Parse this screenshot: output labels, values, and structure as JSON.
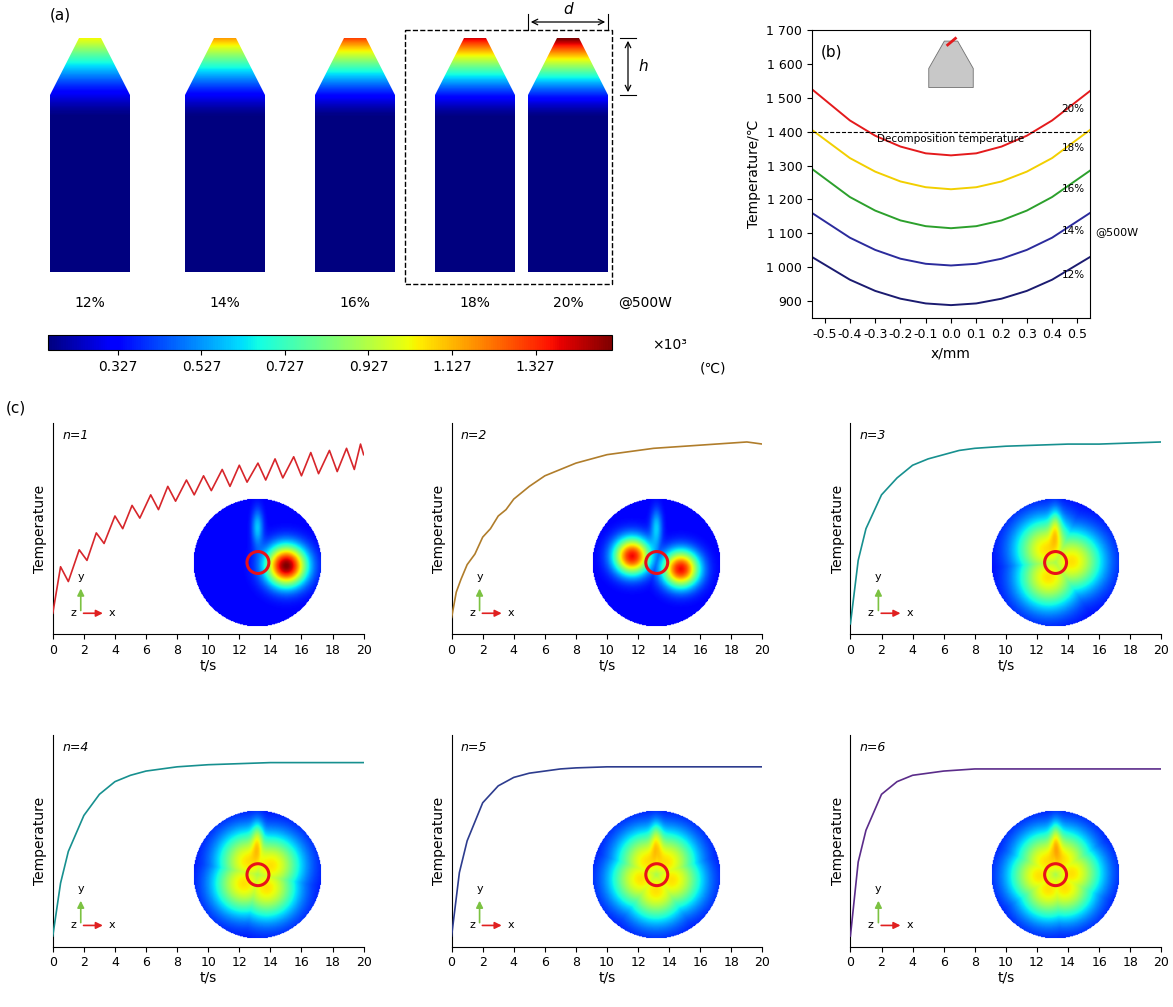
{
  "panel_labels": [
    "(a)",
    "(b)",
    "(c)"
  ],
  "panel_a": {
    "shapes": [
      "12%",
      "14%",
      "16%",
      "18%",
      "20%"
    ],
    "power_label": "@500W",
    "highlighted": [
      "18%",
      "20%"
    ],
    "dimensions": [
      "d",
      "h"
    ],
    "colorbar": {
      "range": [
        160,
        1510
      ],
      "ticks": [
        {
          "value": 327,
          "label": "0.327"
        },
        {
          "value": 527,
          "label": "0.527"
        },
        {
          "value": 727,
          "label": "0.727"
        },
        {
          "value": 927,
          "label": "0.927"
        },
        {
          "value": 1127,
          "label": "1.127"
        },
        {
          "value": 1327,
          "label": "1.327"
        }
      ],
      "multiplier": "×10³",
      "unit": "(℃)"
    }
  },
  "panel_c": {
    "glyph_labels": [
      "x",
      "y",
      "z"
    ]
  },
  "chart_data": [
    {
      "type": "line",
      "xlabel": "x/mm",
      "ylabel": "Temperature/℃",
      "power_label": "@500W",
      "reference_lines": [
        {
          "y": 1400,
          "text": "Decomposition temperature"
        }
      ],
      "x": [
        -0.55,
        -0.4,
        -0.3,
        -0.2,
        -0.1,
        0.0,
        0.1,
        0.2,
        0.3,
        0.4,
        0.55
      ],
      "series": [
        {
          "name": "20%",
          "color": "#e41a1c",
          "values": [
            1525,
            1433,
            1388,
            1356,
            1336,
            1330,
            1336,
            1356,
            1388,
            1433,
            1520
          ]
        },
        {
          "name": "18%",
          "color": "#f2cf00",
          "values": [
            1405,
            1322,
            1282,
            1253,
            1236,
            1230,
            1236,
            1253,
            1282,
            1322,
            1405
          ]
        },
        {
          "name": "16%",
          "color": "#2ca02c",
          "values": [
            1290,
            1207,
            1167,
            1138,
            1121,
            1115,
            1121,
            1138,
            1167,
            1207,
            1285
          ]
        },
        {
          "name": "14%",
          "color": "#2b2b9c",
          "values": [
            1160,
            1087,
            1051,
            1025,
            1010,
            1005,
            1010,
            1025,
            1051,
            1087,
            1160
          ]
        },
        {
          "name": "12%",
          "color": "#1b1b70",
          "values": [
            1030,
            963,
            930,
            907,
            893,
            888,
            893,
            907,
            930,
            963,
            1030
          ]
        }
      ],
      "xlim": [
        -0.55,
        0.55
      ],
      "xticks": [
        -0.5,
        -0.4,
        -0.3,
        -0.2,
        -0.1,
        0.0,
        0.1,
        0.2,
        0.3,
        0.4,
        0.5
      ],
      "ylim": [
        850,
        1700
      ],
      "yticks": [
        900,
        {
          "value": 1000,
          "label": "1 000"
        },
        {
          "value": 1100,
          "label": "1 100"
        },
        {
          "value": 1200,
          "label": "1 200"
        },
        {
          "value": 1300,
          "label": "1 300"
        },
        {
          "value": 1400,
          "label": "1 400"
        },
        {
          "value": 1500,
          "label": "1 500"
        },
        {
          "value": 1600,
          "label": "1 600"
        },
        {
          "value": 1700,
          "label": "1 700"
        }
      ]
    },
    {
      "type": "line",
      "title": "n=1",
      "xlabel": "t/s",
      "ylabel": "Temperature",
      "x": [
        0,
        0.5,
        1.0,
        1.7,
        2.2,
        2.8,
        3.3,
        4.0,
        4.5,
        5.1,
        5.6,
        6.3,
        6.8,
        7.4,
        7.9,
        8.6,
        9.1,
        9.7,
        10.2,
        10.9,
        11.4,
        12.0,
        12.5,
        13.2,
        13.7,
        14.3,
        14.8,
        15.5,
        16.0,
        16.6,
        17.1,
        17.8,
        18.3,
        18.9,
        19.4,
        19.8,
        20.0
      ],
      "series": [
        {
          "color": "#d7262b",
          "values": [
            0.1,
            0.32,
            0.25,
            0.4,
            0.35,
            0.48,
            0.43,
            0.56,
            0.5,
            0.61,
            0.55,
            0.66,
            0.59,
            0.7,
            0.63,
            0.73,
            0.66,
            0.75,
            0.68,
            0.78,
            0.7,
            0.8,
            0.72,
            0.81,
            0.73,
            0.83,
            0.74,
            0.84,
            0.75,
            0.86,
            0.76,
            0.87,
            0.77,
            0.88,
            0.78,
            0.9,
            0.85
          ]
        }
      ],
      "xlim": [
        0,
        20
      ],
      "xticks": [
        0,
        2,
        4,
        6,
        8,
        10,
        12,
        14,
        16,
        18,
        20
      ],
      "ylim": [
        0,
        1
      ],
      "tick_labels": "x"
    },
    {
      "type": "line",
      "title": "n=2",
      "xlabel": "t/s",
      "ylabel": "Temperature",
      "x": [
        0,
        0.3,
        0.6,
        1,
        1.5,
        2,
        2.5,
        3,
        3.5,
        4,
        5,
        6,
        7,
        8,
        9,
        10,
        11,
        12,
        13,
        14,
        15,
        16,
        17,
        18,
        19,
        20
      ],
      "series": [
        {
          "color": "#b07d2b",
          "values": [
            0.08,
            0.2,
            0.26,
            0.33,
            0.38,
            0.46,
            0.5,
            0.56,
            0.59,
            0.64,
            0.7,
            0.75,
            0.78,
            0.81,
            0.83,
            0.85,
            0.86,
            0.87,
            0.88,
            0.885,
            0.89,
            0.895,
            0.9,
            0.905,
            0.91,
            0.9
          ]
        }
      ],
      "xlim": [
        0,
        20
      ],
      "xticks": [
        0,
        2,
        4,
        6,
        8,
        10,
        12,
        14,
        16,
        18,
        20
      ],
      "ylim": [
        0,
        1
      ],
      "tick_labels": "x"
    },
    {
      "type": "line",
      "title": "n=3",
      "xlabel": "t/s",
      "ylabel": "Temperature",
      "x": [
        0,
        0.5,
        1,
        2,
        3,
        4,
        5,
        6,
        7,
        8,
        10,
        12,
        14,
        16,
        18,
        20
      ],
      "series": [
        {
          "color": "#17908f",
          "values": [
            0.05,
            0.35,
            0.5,
            0.66,
            0.74,
            0.8,
            0.83,
            0.85,
            0.87,
            0.88,
            0.89,
            0.895,
            0.9,
            0.9,
            0.905,
            0.91
          ]
        }
      ],
      "xlim": [
        0,
        20
      ],
      "xticks": [
        0,
        2,
        4,
        6,
        8,
        10,
        12,
        14,
        16,
        18,
        20
      ],
      "ylim": [
        0,
        1
      ],
      "tick_labels": "x"
    },
    {
      "type": "line",
      "title": "n=4",
      "xlabel": "t/s",
      "ylabel": "Temperature",
      "x": [
        0,
        0.5,
        1,
        2,
        3,
        4,
        5,
        6,
        7,
        8,
        10,
        12,
        14,
        16,
        18,
        20
      ],
      "series": [
        {
          "color": "#17908f",
          "values": [
            0.05,
            0.3,
            0.45,
            0.62,
            0.72,
            0.78,
            0.81,
            0.83,
            0.84,
            0.85,
            0.86,
            0.865,
            0.87,
            0.87,
            0.87,
            0.87
          ]
        }
      ],
      "xlim": [
        0,
        20
      ],
      "xticks": [
        0,
        2,
        4,
        6,
        8,
        10,
        12,
        14,
        16,
        18,
        20
      ],
      "ylim": [
        0,
        1
      ],
      "tick_labels": "x"
    },
    {
      "type": "line",
      "title": "n=5",
      "xlabel": "t/s",
      "ylabel": "Temperature",
      "x": [
        0,
        0.5,
        1,
        2,
        3,
        4,
        5,
        6,
        7,
        8,
        10,
        12,
        14,
        16,
        18,
        20
      ],
      "series": [
        {
          "color": "#2d3c8e",
          "values": [
            0.05,
            0.35,
            0.5,
            0.68,
            0.76,
            0.8,
            0.82,
            0.83,
            0.84,
            0.845,
            0.85,
            0.85,
            0.85,
            0.85,
            0.85,
            0.85
          ]
        }
      ],
      "xlim": [
        0,
        20
      ],
      "xticks": [
        0,
        2,
        4,
        6,
        8,
        10,
        12,
        14,
        16,
        18,
        20
      ],
      "ylim": [
        0,
        1
      ],
      "tick_labels": "x"
    },
    {
      "type": "line",
      "title": "n=6",
      "xlabel": "t/s",
      "ylabel": "Temperature",
      "x": [
        0,
        0.5,
        1,
        2,
        3,
        4,
        5,
        6,
        7,
        8,
        10,
        12,
        14,
        16,
        18,
        20
      ],
      "series": [
        {
          "color": "#5b2c8a",
          "values": [
            0.05,
            0.4,
            0.55,
            0.72,
            0.78,
            0.81,
            0.82,
            0.83,
            0.835,
            0.84,
            0.84,
            0.84,
            0.84,
            0.84,
            0.84,
            0.84
          ]
        }
      ],
      "xlim": [
        0,
        20
      ],
      "xticks": [
        0,
        2,
        4,
        6,
        8,
        10,
        12,
        14,
        16,
        18,
        20
      ],
      "ylim": [
        0,
        1
      ],
      "tick_labels": "x"
    }
  ]
}
